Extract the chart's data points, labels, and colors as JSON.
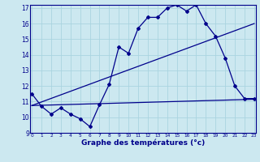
{
  "title": "Graphe des températures (°c)",
  "bg_color": "#cce8f0",
  "line_color": "#00008b",
  "grid_color": "#aad4e0",
  "x_min": 0,
  "x_max": 23,
  "y_min": 9,
  "y_max": 17,
  "x_ticks": [
    0,
    1,
    2,
    3,
    4,
    5,
    6,
    7,
    8,
    9,
    10,
    11,
    12,
    13,
    14,
    15,
    16,
    17,
    18,
    19,
    20,
    21,
    22,
    23
  ],
  "y_ticks": [
    9,
    10,
    11,
    12,
    13,
    14,
    15,
    16,
    17
  ],
  "line1_x": [
    0,
    1,
    2,
    3,
    4,
    5,
    6,
    7,
    8,
    9,
    10,
    11,
    12,
    13,
    14,
    15,
    16,
    17,
    18,
    19,
    20,
    21,
    22,
    23
  ],
  "line1_y": [
    11.5,
    10.7,
    10.2,
    10.6,
    10.2,
    9.9,
    9.4,
    10.8,
    12.1,
    14.5,
    14.1,
    15.7,
    16.4,
    16.4,
    17.0,
    17.2,
    16.8,
    17.2,
    16.0,
    15.2,
    13.8,
    12.0,
    11.2,
    11.2
  ],
  "line2_x": [
    0,
    23
  ],
  "line2_y": [
    10.75,
    11.15
  ],
  "line3_x": [
    0,
    23
  ],
  "line3_y": [
    10.75,
    16.0
  ]
}
